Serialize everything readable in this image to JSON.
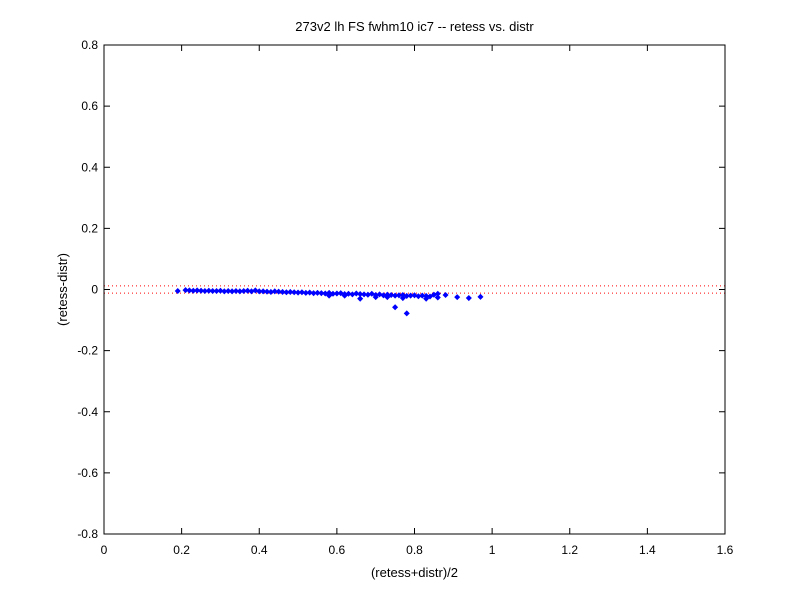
{
  "chart_data": {
    "type": "scatter",
    "title": "273v2 lh FS fwhm10 ic7 -- retess vs. distr",
    "xlabel": "(retess+distr)/2",
    "ylabel": "(retess-distr)",
    "xlim": [
      0,
      1.6
    ],
    "ylim": [
      -0.8,
      0.8
    ],
    "xticks": [
      0,
      0.2,
      0.4,
      0.6,
      0.8,
      1,
      1.2,
      1.4,
      1.6
    ],
    "xtick_labels": [
      "0",
      "0.2",
      "0.4",
      "0.6",
      "0.8",
      "1",
      "1.2",
      "1.4",
      "1.6"
    ],
    "yticks": [
      -0.8,
      -0.6,
      -0.4,
      -0.2,
      0,
      0.2,
      0.4,
      0.6,
      0.8
    ],
    "ytick_labels": [
      "-0.8",
      "-0.6",
      "-0.4",
      "-0.2",
      "0",
      "0.2",
      "0.4",
      "0.6",
      "0.8"
    ],
    "grid": false,
    "legend": "none",
    "reference_lines": [
      0.012,
      -0.012
    ],
    "colors": {
      "points": "#0000ff",
      "reference": "#ff0000",
      "axes": "#000000"
    },
    "series": [
      {
        "marker": "diamond",
        "x": [
          0.19,
          0.21,
          0.22,
          0.23,
          0.24,
          0.25,
          0.26,
          0.27,
          0.28,
          0.29,
          0.3,
          0.31,
          0.32,
          0.33,
          0.34,
          0.35,
          0.36,
          0.37,
          0.38,
          0.39,
          0.4,
          0.41,
          0.42,
          0.43,
          0.44,
          0.45,
          0.46,
          0.47,
          0.48,
          0.49,
          0.5,
          0.51,
          0.52,
          0.53,
          0.54,
          0.55,
          0.56,
          0.57,
          0.58,
          0.59,
          0.6,
          0.61,
          0.62,
          0.63,
          0.64,
          0.65,
          0.66,
          0.67,
          0.68,
          0.69,
          0.7,
          0.71,
          0.72,
          0.73,
          0.74,
          0.75,
          0.76,
          0.77,
          0.78,
          0.79,
          0.8,
          0.81,
          0.82,
          0.83,
          0.84,
          0.85,
          0.86,
          0.88,
          0.91,
          0.94,
          0.97,
          0.66,
          0.75,
          0.77,
          0.78,
          0.83,
          0.86,
          0.58,
          0.62,
          0.7,
          0.73
        ],
        "y": [
          -0.005,
          -0.002,
          -0.003,
          -0.004,
          -0.003,
          -0.004,
          -0.005,
          -0.004,
          -0.005,
          -0.005,
          -0.004,
          -0.006,
          -0.005,
          -0.006,
          -0.005,
          -0.006,
          -0.005,
          -0.004,
          -0.006,
          -0.003,
          -0.006,
          -0.006,
          -0.007,
          -0.008,
          -0.006,
          -0.007,
          -0.008,
          -0.009,
          -0.008,
          -0.009,
          -0.01,
          -0.009,
          -0.011,
          -0.01,
          -0.012,
          -0.011,
          -0.012,
          -0.013,
          -0.011,
          -0.014,
          -0.013,
          -0.012,
          -0.015,
          -0.014,
          -0.016,
          -0.013,
          -0.015,
          -0.016,
          -0.017,
          -0.014,
          -0.018,
          -0.016,
          -0.019,
          -0.017,
          -0.018,
          -0.02,
          -0.019,
          -0.018,
          -0.021,
          -0.02,
          -0.019,
          -0.022,
          -0.02,
          -0.021,
          -0.023,
          -0.017,
          -0.014,
          -0.018,
          -0.025,
          -0.028,
          -0.024,
          -0.03,
          -0.058,
          -0.028,
          -0.078,
          -0.03,
          -0.026,
          -0.02,
          -0.02,
          -0.025,
          -0.025
        ]
      }
    ]
  }
}
